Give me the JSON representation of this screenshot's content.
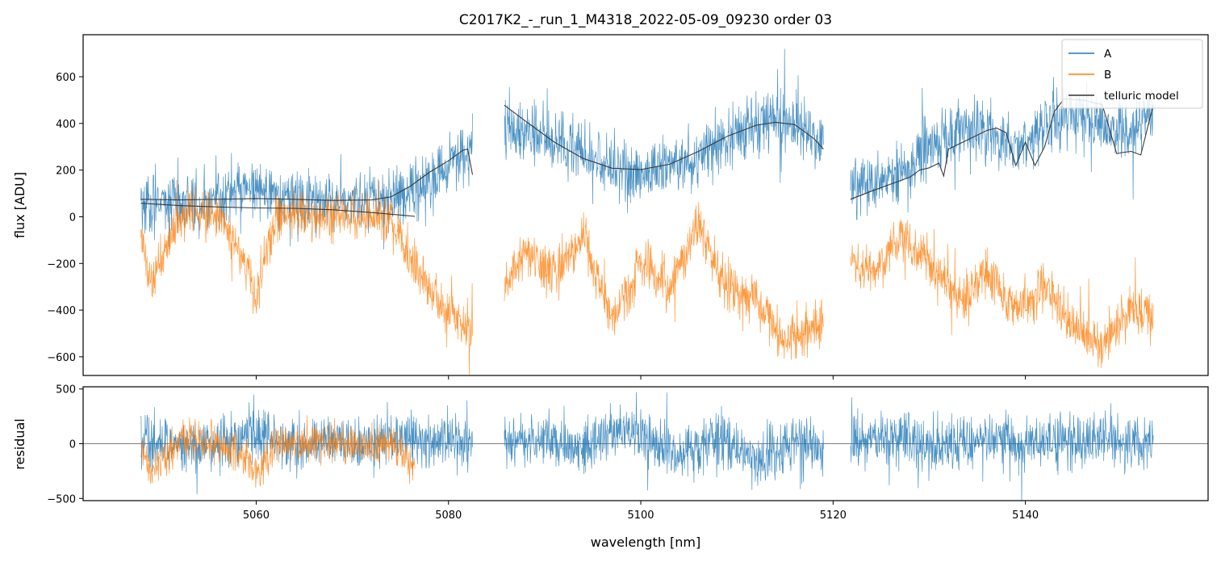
{
  "chart_data": [
    {
      "type": "line",
      "panel": "flux",
      "title": "C2017K2_-_run_1_M4318_2022-05-09_09230  order 03",
      "xlabel": "",
      "ylabel": "flux [ADU]",
      "xlim": [
        5042,
        5159
      ],
      "ylim": [
        -680,
        780
      ],
      "yticks": [
        600,
        400,
        200,
        0,
        -200,
        -400,
        -600
      ],
      "yticklabels": [
        "600",
        "400",
        "200",
        "0",
        "−200",
        "−400",
        "−600"
      ],
      "xticks": [
        5060,
        5080,
        5100,
        5120,
        5140
      ],
      "legend_position": "top-right",
      "series": [
        {
          "name": "A",
          "color": "#1f77b4",
          "segments": [
            {
              "x": [
                5048.0,
                5052.0,
                5056.0,
                5058.0,
                5060.0,
                5064.0,
                5068.0,
                5072.0,
                5076.0,
                5079.0,
                5081.0,
                5082.5
              ],
              "y": [
                70,
                60,
                70,
                120,
                130,
                60,
                60,
                70,
                100,
                180,
                260,
                290
              ]
            },
            {
              "x": [
                5085.8,
                5088.0,
                5092.0,
                5096.0,
                5099.0,
                5102.0,
                5106.0,
                5110.0,
                5114.0,
                5117.0,
                5119.0
              ],
              "y": [
                380,
                360,
                300,
                230,
                180,
                200,
                260,
                360,
                420,
                370,
                300
              ]
            },
            {
              "x": [
                5121.8,
                5125.0,
                5128.0,
                5131.0,
                5134.0,
                5137.0,
                5140.0,
                5143.0,
                5146.0,
                5149.0,
                5151.0,
                5153.3
              ],
              "y": [
                130,
                150,
                220,
                320,
                380,
                330,
                300,
                430,
                420,
                380,
                360,
                450
              ]
            }
          ]
        },
        {
          "name": "B",
          "color": "#ff7f0e",
          "segments": [
            {
              "x": [
                5048.0,
                5049.0,
                5052.0,
                5056.0,
                5059.0,
                5060.0,
                5062.0,
                5066.0,
                5070.0,
                5074.0,
                5077.0,
                5080.0,
                5082.5
              ],
              "y": [
                -50,
                -300,
                10,
                0,
                -200,
                -350,
                10,
                0,
                10,
                -20,
                -250,
                -420,
                -480
              ]
            },
            {
              "x": [
                5085.8,
                5088.0,
                5091.0,
                5094.0,
                5097.0,
                5100.0,
                5103.0,
                5106.0,
                5109.0,
                5112.0,
                5115.0,
                5119.0
              ],
              "y": [
                -300,
                -150,
                -250,
                -80,
                -450,
                -200,
                -300,
                -50,
                -300,
                -350,
                -550,
                -450
              ]
            },
            {
              "x": [
                5121.8,
                5124.0,
                5127.0,
                5130.0,
                5133.0,
                5136.0,
                5139.0,
                5142.0,
                5145.0,
                5148.0,
                5151.0,
                5153.3
              ],
              "y": [
                -150,
                -250,
                -80,
                -200,
                -350,
                -250,
                -400,
                -300,
                -450,
                -550,
                -380,
                -450
              ]
            }
          ]
        },
        {
          "name": "telluric model",
          "color": "#333333",
          "segments": [
            {
              "x": [
                5048.0,
                5052.0,
                5056.0,
                5060.0,
                5064.0,
                5068.0,
                5072.0,
                5074.0,
                5076.0,
                5078.0,
                5080.0,
                5081.5,
                5082.0,
                5082.5
              ],
              "y": [
                75,
                72,
                75,
                78,
                75,
                70,
                72,
                85,
                130,
                190,
                240,
                285,
                290,
                180
              ]
            },
            {
              "x": [
                5048.0,
                5052.0,
                5056.0,
                5060.0,
                5064.0,
                5068.0,
                5072.0,
                5076.5
              ],
              "y": [
                58,
                48,
                42,
                38,
                36,
                30,
                18,
                2
              ]
            },
            {
              "x": [
                5085.8,
                5088.0,
                5091.0,
                5094.0,
                5097.0,
                5100.0,
                5103.0,
                5106.0,
                5109.0,
                5112.0,
                5114.0,
                5116.0,
                5118.0,
                5119.0
              ],
              "y": [
                478,
                410,
                320,
                250,
                208,
                202,
                225,
                280,
                345,
                392,
                405,
                395,
                335,
                290
              ]
            },
            {
              "x": [
                5121.8,
                5124.0,
                5126.0,
                5128.0,
                5129.0,
                5130.0,
                5131.0,
                5131.5,
                5132.0,
                5134.0,
                5136.0,
                5137.0,
                5138.0,
                5139.0,
                5140.0,
                5141.0,
                5142.0,
                5143.0,
                5144.0,
                5146.0,
                5148.0,
                5149.5,
                5150.0,
                5151.0,
                5152.0,
                5153.3
              ],
              "y": [
                75,
                110,
                140,
                170,
                200,
                210,
                230,
                175,
                290,
                330,
                370,
                380,
                360,
                220,
                320,
                220,
                300,
                450,
                505,
                500,
                480,
                270,
                275,
                280,
                265,
                480
              ]
            }
          ]
        }
      ]
    },
    {
      "type": "line",
      "panel": "residual",
      "xlabel": "wavelength [nm]",
      "ylabel": "residual",
      "xlim": [
        5042,
        5159
      ],
      "ylim": [
        -520,
        520
      ],
      "yticks": [
        500,
        0,
        -500
      ],
      "yticklabels": [
        "500",
        "0",
        "−500"
      ],
      "xticks": [
        5060,
        5080,
        5100,
        5120,
        5140
      ],
      "xticklabels": [
        "5060",
        "5080",
        "5100",
        "5120",
        "5140"
      ],
      "zero_line": true,
      "series": [
        {
          "name": "A",
          "color": "#1f77b4",
          "segments": [
            {
              "x": [
                5048.0,
                5052.0,
                5056.0,
                5058.0,
                5060.0,
                5064.0,
                5068.0,
                5072.0,
                5076.0,
                5080.0,
                5082.5
              ],
              "y": [
                0,
                -10,
                0,
                50,
                120,
                -10,
                0,
                10,
                20,
                30,
                10
              ]
            },
            {
              "x": [
                5085.8,
                5090.0,
                5094.0,
                5098.0,
                5100.0,
                5104.0,
                5108.0,
                5112.0,
                5116.0,
                5119.0
              ],
              "y": [
                0,
                20,
                -20,
                150,
                80,
                -120,
                60,
                -150,
                20,
                -50
              ]
            },
            {
              "x": [
                5121.8,
                5125.0,
                5128.0,
                5131.0,
                5134.0,
                5137.0,
                5140.0,
                5143.0,
                5146.0,
                5149.0,
                5153.3
              ],
              "y": [
                0,
                80,
                20,
                -30,
                10,
                40,
                -50,
                30,
                10,
                30,
                0
              ]
            }
          ]
        },
        {
          "name": "B",
          "color": "#ff7f0e",
          "segments": [
            {
              "x": [
                5048.0,
                5049.0,
                5052.0,
                5056.0,
                5059.0,
                5060.0,
                5062.0,
                5066.0,
                5070.0,
                5074.0,
                5076.5
              ],
              "y": [
                0,
                -250,
                20,
                0,
                -150,
                -300,
                10,
                0,
                10,
                -20,
                -200
              ]
            }
          ]
        }
      ]
    }
  ]
}
